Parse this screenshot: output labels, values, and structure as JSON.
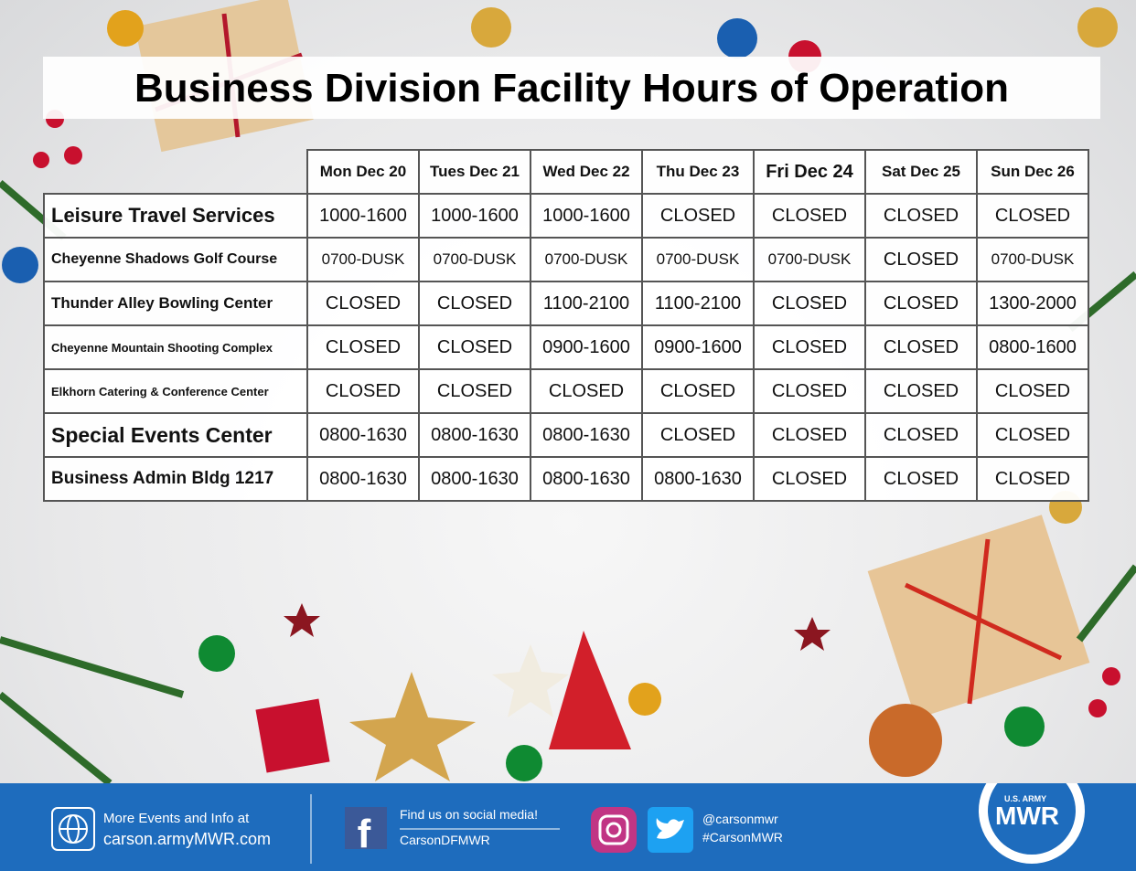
{
  "title": "Business Division Facility Hours of Operation",
  "table": {
    "header": [
      "Mon Dec 20",
      "Tues Dec 21",
      "Wed Dec 22",
      "Thu Dec 23",
      "Fri Dec 24",
      "Sat Dec 25",
      "Sun Dec 26"
    ],
    "rows": [
      [
        "Leisure Travel Services",
        "1000-1600",
        "1000-1600",
        "1000-1600",
        "CLOSED",
        "CLOSED",
        "CLOSED",
        "CLOSED"
      ],
      [
        "Cheyenne Shadows Golf Course",
        "0700-DUSK",
        "0700-DUSK",
        "0700-DUSK",
        "0700-DUSK",
        "0700-DUSK",
        "CLOSED",
        "0700-DUSK"
      ],
      [
        "Thunder Alley Bowling Center",
        "CLOSED",
        "CLOSED",
        "1100-2100",
        "1100-2100",
        "CLOSED",
        "CLOSED",
        "1300-2000"
      ],
      [
        "Cheyenne Mountain Shooting Complex",
        "CLOSED",
        "CLOSED",
        "0900-1600",
        "0900-1600",
        "CLOSED",
        "CLOSED",
        "0800-1600"
      ],
      [
        "Elkhorn Catering & Conference Center",
        "CLOSED",
        "CLOSED",
        "CLOSED",
        "CLOSED",
        "CLOSED",
        "CLOSED",
        "CLOSED"
      ],
      [
        "Special Events Center",
        "0800-1630",
        "0800-1630",
        "0800-1630",
        "CLOSED",
        "CLOSED",
        "CLOSED",
        "CLOSED"
      ],
      [
        "Business Admin Bldg 1217",
        "0800-1630",
        "0800-1630",
        "0800-1630",
        "0800-1630",
        "CLOSED",
        "CLOSED",
        "CLOSED"
      ]
    ]
  },
  "footer": {
    "web_text": "More Events and Info at",
    "web_url": "carson.armyMWR.com",
    "social_text": "Find us on social media!",
    "facebook": "CarsonDFMWR",
    "handle": "@carsonmwr",
    "hashtag": "#CarsonMWR",
    "logo_top": "U.S. ARMY",
    "logo_main": "MWR"
  }
}
